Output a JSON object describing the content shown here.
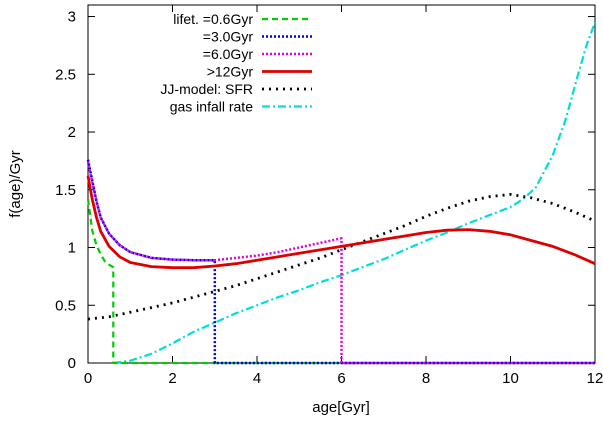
{
  "chart_data": {
    "type": "line",
    "xlabel": "age[Gyr]",
    "ylabel": "f(age)/Gyr",
    "xlim": [
      0,
      12
    ],
    "ylim": [
      0,
      3.1
    ],
    "x_ticks": [
      0,
      2,
      4,
      6,
      8,
      10,
      12
    ],
    "x_tick_labels": [
      "0",
      "2",
      "4",
      "6",
      "8",
      "10",
      "12"
    ],
    "y_ticks": [
      0,
      0.5,
      1,
      1.5,
      2,
      2.5,
      3
    ],
    "y_tick_labels": [
      "0",
      "0.5",
      "1",
      "1.5",
      "2",
      "2.5",
      "3"
    ],
    "grid": false,
    "legend_position": "top-left",
    "series": [
      {
        "name": "lifet. =0.6Gyr",
        "color": "#00cc00",
        "dash": "6,4",
        "width": 2.2,
        "points": [
          [
            0,
            1.42
          ],
          [
            0.1,
            1.15
          ],
          [
            0.2,
            1.02
          ],
          [
            0.3,
            0.94
          ],
          [
            0.4,
            0.88
          ],
          [
            0.5,
            0.85
          ],
          [
            0.6,
            0.83
          ],
          [
            0.6,
            0.0
          ],
          [
            12,
            0.0
          ]
        ]
      },
      {
        "name": "=3.0Gyr",
        "color": "#0000ee",
        "dash": "2,2",
        "width": 2.5,
        "points": [
          [
            0,
            1.76
          ],
          [
            0.1,
            1.58
          ],
          [
            0.2,
            1.4
          ],
          [
            0.3,
            1.26
          ],
          [
            0.5,
            1.12
          ],
          [
            0.75,
            1.02
          ],
          [
            1.0,
            0.96
          ],
          [
            1.5,
            0.91
          ],
          [
            2.0,
            0.895
          ],
          [
            2.5,
            0.89
          ],
          [
            3.0,
            0.89
          ],
          [
            3.0,
            0.0
          ],
          [
            12,
            0.0
          ]
        ]
      },
      {
        "name": "=6.0Gyr",
        "color": "#dd00dd",
        "dash": "2,2",
        "width": 2.5,
        "points": [
          [
            0,
            1.74
          ],
          [
            0.1,
            1.57
          ],
          [
            0.2,
            1.4
          ],
          [
            0.3,
            1.26
          ],
          [
            0.5,
            1.12
          ],
          [
            0.75,
            1.02
          ],
          [
            1.0,
            0.96
          ],
          [
            1.5,
            0.91
          ],
          [
            2.0,
            0.895
          ],
          [
            2.5,
            0.89
          ],
          [
            3.0,
            0.89
          ],
          [
            3.5,
            0.91
          ],
          [
            4.0,
            0.93
          ],
          [
            4.5,
            0.96
          ],
          [
            5.0,
            1.0
          ],
          [
            5.5,
            1.04
          ],
          [
            6.0,
            1.08
          ],
          [
            6.0,
            0.0
          ],
          [
            12,
            0.0
          ]
        ]
      },
      {
        "name": ">12Gyr",
        "color": "#dd0000",
        "dash": "",
        "width": 2.8,
        "points": [
          [
            0,
            1.62
          ],
          [
            0.1,
            1.42
          ],
          [
            0.2,
            1.26
          ],
          [
            0.3,
            1.14
          ],
          [
            0.5,
            1.01
          ],
          [
            0.75,
            0.92
          ],
          [
            1.0,
            0.87
          ],
          [
            1.5,
            0.835
          ],
          [
            2.0,
            0.825
          ],
          [
            2.5,
            0.825
          ],
          [
            3.0,
            0.84
          ],
          [
            3.5,
            0.86
          ],
          [
            4.0,
            0.89
          ],
          [
            5.0,
            0.95
          ],
          [
            6.0,
            1.01
          ],
          [
            7.0,
            1.07
          ],
          [
            7.5,
            1.1
          ],
          [
            8.0,
            1.13
          ],
          [
            8.5,
            1.15
          ],
          [
            9.0,
            1.155
          ],
          [
            9.5,
            1.14
          ],
          [
            10.0,
            1.11
          ],
          [
            10.5,
            1.06
          ],
          [
            11.0,
            1.01
          ],
          [
            11.5,
            0.94
          ],
          [
            12.0,
            0.86
          ]
        ]
      },
      {
        "name": "JJ-model: SFR",
        "color": "#000000",
        "dash": "2,5",
        "width": 2.8,
        "points": [
          [
            0,
            0.38
          ],
          [
            0.5,
            0.4
          ],
          [
            1,
            0.44
          ],
          [
            1.5,
            0.48
          ],
          [
            2,
            0.52
          ],
          [
            2.5,
            0.57
          ],
          [
            3,
            0.62
          ],
          [
            3.5,
            0.67
          ],
          [
            4,
            0.73
          ],
          [
            4.5,
            0.79
          ],
          [
            5,
            0.85
          ],
          [
            5.5,
            0.91
          ],
          [
            6,
            0.98
          ],
          [
            6.5,
            1.05
          ],
          [
            7,
            1.12
          ],
          [
            7.5,
            1.19
          ],
          [
            8,
            1.27
          ],
          [
            8.5,
            1.34
          ],
          [
            9,
            1.4
          ],
          [
            9.5,
            1.44
          ],
          [
            10,
            1.46
          ],
          [
            10.5,
            1.43
          ],
          [
            11,
            1.38
          ],
          [
            11.5,
            1.31
          ],
          [
            12,
            1.23
          ]
        ]
      },
      {
        "name": "gas infall rate",
        "color": "#00dddd",
        "dash": "8,3,2,3",
        "width": 2.2,
        "points": [
          [
            0.6,
            0.0
          ],
          [
            1.0,
            0.02
          ],
          [
            1.5,
            0.08
          ],
          [
            2.0,
            0.17
          ],
          [
            2.5,
            0.27
          ],
          [
            3.0,
            0.35
          ],
          [
            3.5,
            0.43
          ],
          [
            4.0,
            0.5
          ],
          [
            4.5,
            0.57
          ],
          [
            5.0,
            0.63
          ],
          [
            5.5,
            0.7
          ],
          [
            6.0,
            0.76
          ],
          [
            6.5,
            0.83
          ],
          [
            7.0,
            0.9
          ],
          [
            7.5,
            0.98
          ],
          [
            8.0,
            1.06
          ],
          [
            8.5,
            1.13
          ],
          [
            9.0,
            1.21
          ],
          [
            9.5,
            1.28
          ],
          [
            10.0,
            1.35
          ],
          [
            10.3,
            1.42
          ],
          [
            10.6,
            1.52
          ],
          [
            11.0,
            1.8
          ],
          [
            11.3,
            2.1
          ],
          [
            11.6,
            2.5
          ],
          [
            11.8,
            2.75
          ],
          [
            12.0,
            2.95
          ]
        ]
      }
    ]
  }
}
